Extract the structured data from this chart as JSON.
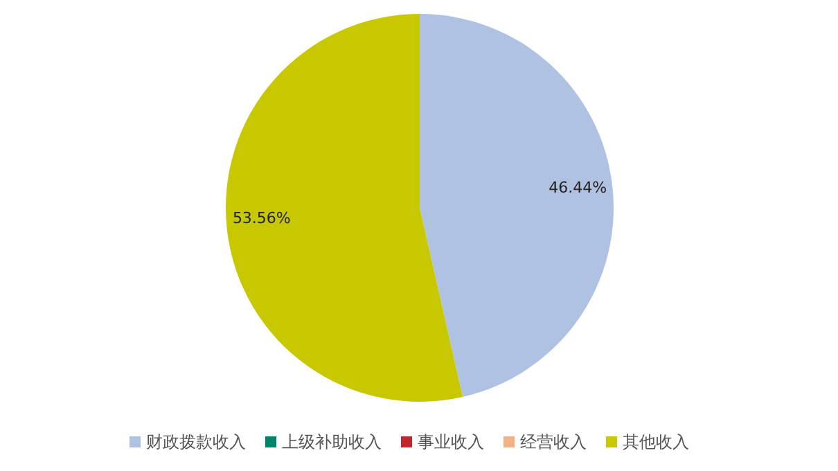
{
  "chart_data": {
    "type": "pie",
    "categories": [
      "财政拨款收入",
      "上级补助收入",
      "事业收入",
      "经营收入",
      "其他收入"
    ],
    "values": [
      46.44,
      0,
      0,
      0,
      53.56
    ],
    "colors": [
      "#b0c2e2",
      "#00856a",
      "#c0282e",
      "#f4b183",
      "#c8c800"
    ],
    "value_labels": [
      "46.44%",
      null,
      null,
      null,
      "53.56%"
    ],
    "legend": "bottom"
  }
}
